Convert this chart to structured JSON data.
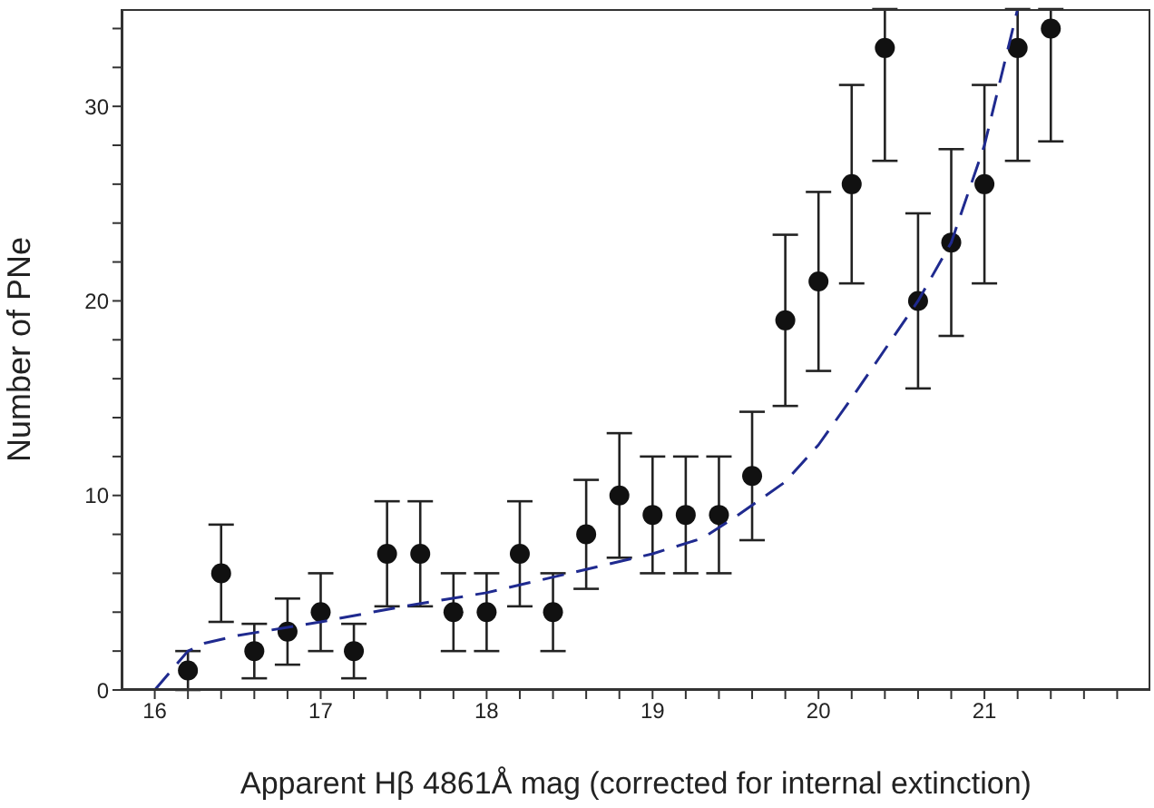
{
  "chart_data": {
    "type": "scatter",
    "xlabel": "Apparent Hβ 4861Å mag (corrected for internal extinction)",
    "ylabel": "Number of PNe",
    "xlim": [
      15.8,
      22
    ],
    "ylim": [
      0,
      35
    ],
    "xticks": [
      16,
      {
        "value": 16.2,
        "label": null
      },
      {
        "value": 16.4,
        "label": null
      },
      {
        "value": 16.6,
        "label": null
      },
      {
        "value": 16.8,
        "label": null
      },
      17,
      {
        "value": 17.2,
        "label": null
      },
      {
        "value": 17.4,
        "label": null
      },
      {
        "value": 17.6,
        "label": null
      },
      {
        "value": 17.8,
        "label": null
      },
      18,
      {
        "value": 18.2,
        "label": null
      },
      {
        "value": 18.4,
        "label": null
      },
      {
        "value": 18.6,
        "label": null
      },
      {
        "value": 18.8,
        "label": null
      },
      19,
      {
        "value": 19.2,
        "label": null
      },
      {
        "value": 19.4,
        "label": null
      },
      {
        "value": 19.6,
        "label": null
      },
      {
        "value": 19.8,
        "label": null
      },
      20,
      {
        "value": 20.2,
        "label": null
      },
      {
        "value": 20.4,
        "label": null
      },
      {
        "value": 20.6,
        "label": null
      },
      {
        "value": 20.8,
        "label": null
      },
      21,
      {
        "value": 21.2,
        "label": null
      },
      {
        "value": 21.4,
        "label": null
      },
      {
        "value": 21.6,
        "label": null
      },
      {
        "value": 21.8,
        "label": null
      }
    ],
    "yticks": [
      0,
      {
        "value": 2,
        "label": null
      },
      {
        "value": 4,
        "label": null
      },
      {
        "value": 6,
        "label": null
      },
      {
        "value": 8,
        "label": null
      },
      10,
      {
        "value": 12,
        "label": null
      },
      {
        "value": 14,
        "label": null
      },
      {
        "value": 16,
        "label": null
      },
      {
        "value": 18,
        "label": null
      },
      20,
      {
        "value": 22,
        "label": null
      },
      {
        "value": 24,
        "label": null
      },
      {
        "value": 26,
        "label": null
      },
      {
        "value": 28,
        "label": null
      },
      30,
      {
        "value": 32,
        "label": null
      },
      {
        "value": 34,
        "label": null
      }
    ],
    "marker": "circle",
    "series": [
      {
        "color": "#111111",
        "x": [
          16.2,
          16.4,
          16.6,
          16.8,
          17.0,
          17.2,
          17.4,
          17.6,
          17.8,
          18.0,
          18.2,
          18.4,
          18.6,
          18.8,
          19.0,
          19.2,
          19.4,
          19.6,
          19.8,
          20.0,
          20.2,
          20.4,
          20.6,
          20.8,
          21.0,
          21.2,
          21.4
        ],
        "values": [
          1,
          6,
          2,
          3,
          4,
          2,
          7,
          7,
          4,
          4,
          7,
          4,
          8,
          10,
          9,
          9,
          9,
          11,
          19,
          21,
          26,
          33,
          20,
          23,
          26,
          33,
          34
        ],
        "errors": [
          [
            0,
            2
          ],
          [
            3.5,
            8.5
          ],
          [
            0.6,
            3.4
          ],
          [
            1.3,
            4.7
          ],
          [
            2,
            6
          ],
          [
            0.6,
            3.4
          ],
          [
            4.3,
            9.7
          ],
          [
            4.3,
            9.7
          ],
          [
            2,
            6
          ],
          [
            2,
            6
          ],
          [
            4.3,
            9.7
          ],
          [
            2,
            6
          ],
          [
            5.2,
            10.8
          ],
          [
            6.8,
            13.2
          ],
          [
            6,
            12
          ],
          [
            6,
            12
          ],
          [
            6,
            12
          ],
          [
            7.7,
            14.3
          ],
          [
            14.6,
            23.4
          ],
          [
            16.4,
            25.6
          ],
          [
            20.9,
            31.1
          ],
          [
            27.2,
            35
          ],
          [
            15.5,
            24.5
          ],
          [
            18.2,
            27.8
          ],
          [
            20.9,
            31.1
          ],
          [
            27.2,
            35
          ],
          [
            28.2,
            35
          ]
        ]
      },
      {
        "type": "line",
        "color": "#1f2a8f",
        "line_style": "dashed",
        "marker": "none",
        "x": [
          16.0,
          16.2,
          16.3,
          16.5,
          17.0,
          17.5,
          18.0,
          18.5,
          19.0,
          19.3,
          19.5,
          19.8,
          20.0,
          20.2,
          20.4,
          20.6,
          20.8,
          21.0,
          21.1,
          21.2
        ],
        "values": [
          0,
          2,
          2.4,
          2.8,
          3.5,
          4.3,
          5,
          6,
          7,
          7.8,
          8.9,
          10.7,
          12.6,
          15,
          17.5,
          20,
          23,
          28,
          31.5,
          35
        ]
      }
    ]
  }
}
